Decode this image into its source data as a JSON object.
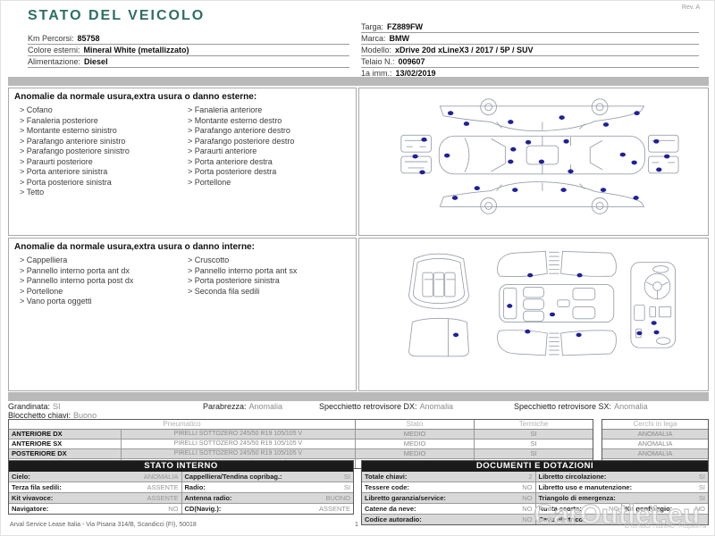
{
  "page": {
    "title": "STATO DEL VEICOLO",
    "rev": "Rev. A"
  },
  "vehicle": {
    "left": [
      {
        "label": "Km Percorsi:",
        "value": "85758"
      },
      {
        "label": "Colore esterni:",
        "value": "Mineral White (metallizzato)"
      },
      {
        "label": "Alimentazione:",
        "value": "Diesel"
      }
    ],
    "right": [
      {
        "label": "Targa:",
        "value": "FZ889FW"
      },
      {
        "label": "Marca:",
        "value": "BMW"
      },
      {
        "label": "Modello:",
        "value": "xDrive 20d xLineX3 / 2017 / 5P / SUV"
      },
      {
        "label": "Telaio N.:",
        "value": "009607"
      },
      {
        "label": "1a imm.:",
        "value": "13/02/2019"
      }
    ]
  },
  "exterior": {
    "heading": "Anomalie da normale usura,extra usura o danno esterne:",
    "col1": [
      "Cofano",
      "Fanaleria posteriore",
      "Montante esterno sinistro",
      "Parafango anteriore sinistro",
      "Parafango posteriore sinistro",
      "Paraurti posteriore",
      "Porta anteriore sinistra",
      "Porta posteriore sinistra",
      "Tetto"
    ],
    "col2": [
      "Fanaleria anteriore",
      "Montante esterno destro",
      "Parafango anteriore destro",
      "Parafango posteriore destro",
      "Paraurti anteriore",
      "Porta anteriore destra",
      "Porta posteriore destra",
      "Portellone"
    ]
  },
  "interior": {
    "heading": "Anomalie da normale usura,extra usura o danno interne:",
    "col1": [
      "Cappelliera",
      "Pannello interno porta ant dx",
      "Pannello interno porta post dx",
      "Portellone",
      "Vano porta oggetti"
    ],
    "col2": [
      "Cruscotto",
      "Pannello interno porta ant sx",
      "Porta posteriore sinistra",
      "Seconda fila sedili"
    ]
  },
  "status": {
    "items": [
      {
        "label": "Grandinata:",
        "value": "SI"
      },
      {
        "label": "Parabrezza:",
        "value": "Anomalia"
      },
      {
        "label": "Specchietto retrovisore DX:",
        "value": "Anomalia"
      },
      {
        "label": "Specchietto retrovisore SX:",
        "value": "Anomalia"
      }
    ],
    "line2": {
      "label": "Blocchetto chiavi:",
      "value": "Buono"
    }
  },
  "tyres": {
    "headers": {
      "pneumatico": "Pneumatico",
      "stato": "Stato",
      "termiche": "Termiche",
      "cerchi": "Cerchi in lega"
    },
    "rows": [
      {
        "pos": "ANTERIORE DX",
        "spec": "PIRELLI SOTTOZERO 245/50 R19 105/105 V",
        "stato": "MEDIO",
        "termiche": "SI",
        "cerchi": "ANOMALIA"
      },
      {
        "pos": "ANTERIORE SX",
        "spec": "PIRELLI SOTTOZERO 245/50 R19 105/105 V",
        "stato": "MEDIO",
        "termiche": "SI",
        "cerchi": "ANOMALIA"
      },
      {
        "pos": "POSTERIORE DX",
        "spec": "PIRELLI SOTTOZERO 245/50 R19 105/105 V",
        "stato": "MEDIO",
        "termiche": "SI",
        "cerchi": "ANOMALIA"
      },
      {
        "pos": "POSTERIORE SX",
        "spec": "PIRELLI SOTTOZERO 245/50 R19 105/105 V",
        "stato": "MEDIO",
        "termiche": "SI",
        "cerchi": "ANOMALIA"
      }
    ]
  },
  "stato_interno": {
    "title": "STATO INTERNO",
    "rows": [
      {
        "cells": [
          {
            "label": "Cielo:",
            "value": "ANOMALIA"
          },
          {
            "label": "Cappelliera/Tendina copribag.:",
            "value": "SI"
          }
        ]
      },
      {
        "cells": [
          {
            "label": "Terza fila sedili:",
            "value": "ASSENTE"
          },
          {
            "label": "Radio:",
            "value": "SI"
          }
        ]
      },
      {
        "cells": [
          {
            "label": "Kit vivavoce:",
            "value": "ASSENTE"
          },
          {
            "label": "Antenna radio:",
            "value": "BUONO"
          }
        ]
      },
      {
        "cells": [
          {
            "label": "Navigatore:",
            "value": "NO"
          },
          {
            "label": "CD(Navig.):",
            "value": "ASSENTE"
          }
        ]
      }
    ]
  },
  "documenti": {
    "title": "DOCUMENTI E DOTAZIONI",
    "rows": [
      {
        "cells": [
          {
            "label": "Totale chiavi:",
            "value": "2"
          },
          {
            "label": "Libretto circolazione:",
            "value": "SI"
          }
        ]
      },
      {
        "cells": [
          {
            "label": "Tessere code:",
            "value": "NO"
          },
          {
            "label": "Libretto uso e manutenzione:",
            "value": "SI"
          }
        ]
      },
      {
        "cells": [
          {
            "label": "Libretto garanzia/service:",
            "value": "NO"
          },
          {
            "label": "Triangolo di emergenza:",
            "value": "SI"
          }
        ]
      },
      {
        "cells": [
          {
            "label": "Catene da neve:",
            "value": "NO"
          },
          {
            "label": "Ruota scorta:",
            "value": "NO"
          },
          {
            "label": "Kit gonfiaggio:",
            "value": "NO"
          }
        ]
      },
      {
        "cells": [
          {
            "label": "Codice autoradio:",
            "value": "NO"
          },
          {
            "label": "Cavo elettrico:",
            "value": ""
          }
        ]
      }
    ]
  },
  "footer": {
    "address": "Arval Service Lease Italia - Via Pisana 314/B, Scandicci (FI), 50018",
    "page": "1",
    "code": "ID tu7NuO. Tlsu/B4O , Pcup69h-ur",
    "watermark": "CarOutlet.eu"
  }
}
